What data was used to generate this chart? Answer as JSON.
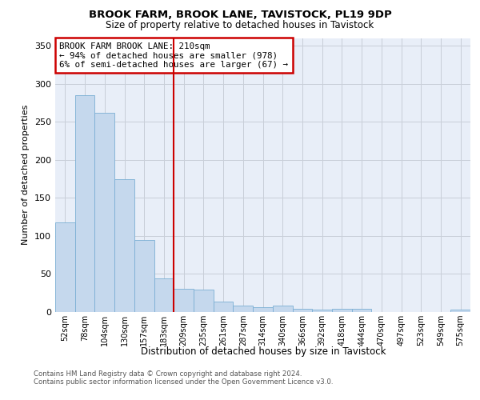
{
  "title": "BROOK FARM, BROOK LANE, TAVISTOCK, PL19 9DP",
  "subtitle": "Size of property relative to detached houses in Tavistock",
  "xlabel": "Distribution of detached houses by size in Tavistock",
  "ylabel": "Number of detached properties",
  "categories": [
    "52sqm",
    "78sqm",
    "104sqm",
    "130sqm",
    "157sqm",
    "183sqm",
    "209sqm",
    "235sqm",
    "261sqm",
    "287sqm",
    "314sqm",
    "340sqm",
    "366sqm",
    "392sqm",
    "418sqm",
    "444sqm",
    "470sqm",
    "497sqm",
    "523sqm",
    "549sqm",
    "575sqm"
  ],
  "values": [
    118,
    285,
    262,
    175,
    95,
    44,
    30,
    29,
    14,
    8,
    6,
    8,
    4,
    3,
    4,
    4,
    0,
    0,
    0,
    0,
    3
  ],
  "bar_color": "#c5d8ed",
  "bar_edge_color": "#7bafd4",
  "property_line_index": 6,
  "property_line_color": "#cc0000",
  "annotation_text": "BROOK FARM BROOK LANE: 210sqm\n← 94% of detached houses are smaller (978)\n6% of semi-detached houses are larger (67) →",
  "annotation_box_edge": "#cc0000",
  "plot_background": "#e8eef8",
  "grid_color": "#c8ced8",
  "ylim": [
    0,
    360
  ],
  "yticks": [
    0,
    50,
    100,
    150,
    200,
    250,
    300,
    350
  ],
  "footer_line1": "Contains HM Land Registry data © Crown copyright and database right 2024.",
  "footer_line2": "Contains public sector information licensed under the Open Government Licence v3.0."
}
